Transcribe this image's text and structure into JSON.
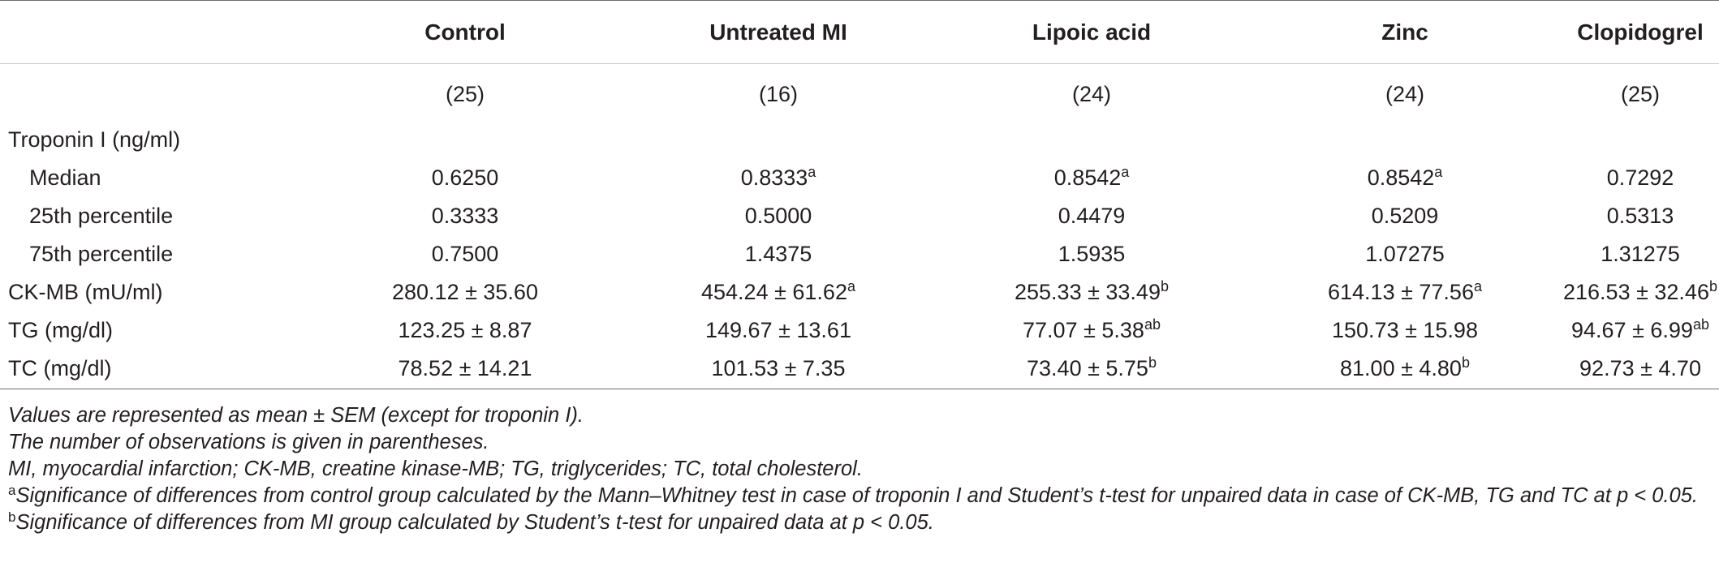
{
  "table": {
    "columns": [
      "Control",
      "Untreated MI",
      "Lipoic acid",
      "Zinc",
      "Clopidogrel"
    ],
    "n_values": [
      "(25)",
      "(16)",
      "(24)",
      "(24)",
      "(25)"
    ],
    "rows": [
      {
        "label": "Troponin I (ng/ml)",
        "indent": false,
        "cells": [
          {
            "v": "",
            "s": ""
          },
          {
            "v": "",
            "s": ""
          },
          {
            "v": "",
            "s": ""
          },
          {
            "v": "",
            "s": ""
          },
          {
            "v": "",
            "s": ""
          }
        ]
      },
      {
        "label": "Median",
        "indent": true,
        "cells": [
          {
            "v": "0.6250",
            "s": ""
          },
          {
            "v": "0.8333",
            "s": "a"
          },
          {
            "v": "0.8542",
            "s": "a"
          },
          {
            "v": "0.8542",
            "s": "a"
          },
          {
            "v": "0.7292",
            "s": ""
          }
        ]
      },
      {
        "label": "25th percentile",
        "indent": true,
        "cells": [
          {
            "v": "0.3333",
            "s": ""
          },
          {
            "v": "0.5000",
            "s": ""
          },
          {
            "v": "0.4479",
            "s": ""
          },
          {
            "v": "0.5209",
            "s": ""
          },
          {
            "v": "0.5313",
            "s": ""
          }
        ]
      },
      {
        "label": "75th percentile",
        "indent": true,
        "cells": [
          {
            "v": "0.7500",
            "s": ""
          },
          {
            "v": "1.4375",
            "s": ""
          },
          {
            "v": "1.5935",
            "s": ""
          },
          {
            "v": "1.07275",
            "s": ""
          },
          {
            "v": "1.31275",
            "s": ""
          }
        ]
      },
      {
        "label": "CK-MB (mU/ml)",
        "indent": false,
        "cells": [
          {
            "v": "280.12 ± 35.60",
            "s": ""
          },
          {
            "v": "454.24 ± 61.62",
            "s": "a"
          },
          {
            "v": "255.33 ± 33.49",
            "s": "b"
          },
          {
            "v": "614.13 ± 77.56",
            "s": "a"
          },
          {
            "v": "216.53 ± 32.46",
            "s": "b"
          }
        ]
      },
      {
        "label": "TG (mg/dl)",
        "indent": false,
        "cells": [
          {
            "v": "123.25 ± 8.87",
            "s": ""
          },
          {
            "v": "149.67 ± 13.61",
            "s": ""
          },
          {
            "v": "77.07 ± 5.38",
            "s": "ab"
          },
          {
            "v": "150.73 ± 15.98",
            "s": ""
          },
          {
            "v": "94.67 ± 6.99",
            "s": "ab"
          }
        ]
      },
      {
        "label": "TC (mg/dl)",
        "indent": false,
        "cells": [
          {
            "v": "78.52 ± 14.21",
            "s": ""
          },
          {
            "v": "101.53 ± 7.35",
            "s": ""
          },
          {
            "v": "73.40 ± 5.75",
            "s": "b"
          },
          {
            "v": "81.00 ± 4.80",
            "s": "b"
          },
          {
            "v": "92.73 ± 4.70",
            "s": ""
          }
        ]
      }
    ]
  },
  "notes": [
    {
      "mark": "",
      "text": "Values are represented as mean ± SEM (except for troponin I)."
    },
    {
      "mark": "",
      "text": "The number of observations is given in parentheses."
    },
    {
      "mark": "",
      "text": "MI, myocardial infarction; CK-MB, creatine kinase-MB; TG, triglycerides; TC, total cholesterol."
    },
    {
      "mark": "a",
      "text": "Significance of differences from control group calculated by the Mann–Whitney test in case of troponin I and Student’s t-test for unpaired data in case of CK-MB, TG and TC at p < 0.05."
    },
    {
      "mark": "b",
      "text": "Significance of differences from MI group calculated by Student’s t-test for unpaired data at p < 0.05."
    }
  ]
}
